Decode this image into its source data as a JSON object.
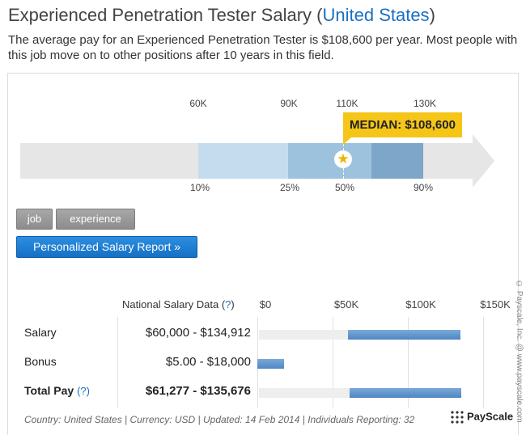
{
  "header": {
    "title": "Experienced Penetration Tester Salary (",
    "country_link": "United States",
    "title_close": ")",
    "description": "The average pay for an Experienced Penetration Tester is $108,600 per year. Most people with this job move on to other positions after 10 years in this field."
  },
  "chart_data": {
    "type": "bar",
    "top_axis_ticks": [
      "60K",
      "90K",
      "110K",
      "130K"
    ],
    "percentile_labels": [
      "10%",
      "25%",
      "50%",
      "90%"
    ],
    "percentile_values": {
      "p10": 60000,
      "p25": 90000,
      "p50": 108600,
      "p75": 119000,
      "p90": 134900
    },
    "median_label": "MEDIAN: $108,600",
    "segment_colors": [
      "#c4dcee",
      "#9dc2de",
      "#7ea6c8"
    ]
  },
  "filters": {
    "chips": [
      "job",
      "experience"
    ],
    "cta_label": "Personalized Salary Report »"
  },
  "table": {
    "header_label": "National Salary Data (",
    "help_marker": "?",
    "header_close": ")",
    "axis_ticks": [
      "$0",
      "$50K",
      "$100K",
      "$150K"
    ],
    "rows": [
      {
        "label": "Salary",
        "range": "$60,000 - $134,912",
        "min": 60000,
        "max": 134912,
        "bold": false
      },
      {
        "label": "Bonus",
        "range": "$5.00 - $18,000",
        "min": 5,
        "max": 18000,
        "bold": false
      },
      {
        "label": "Total Pay",
        "range": "$61,277 - $135,676",
        "min": 61277,
        "max": 135676,
        "bold": true
      }
    ],
    "total_help": "(?)"
  },
  "footer": {
    "meta": "Country: United States | Currency: USD | Updated: 14 Feb 2014 | Individuals Reporting: 32",
    "brand": "PayScale",
    "copyright": "© Payscale, Inc. @ www.payscale.com"
  },
  "colors": {
    "link": "#1a6fc2",
    "median": "#f5c518",
    "bar": "#4f86c2"
  }
}
